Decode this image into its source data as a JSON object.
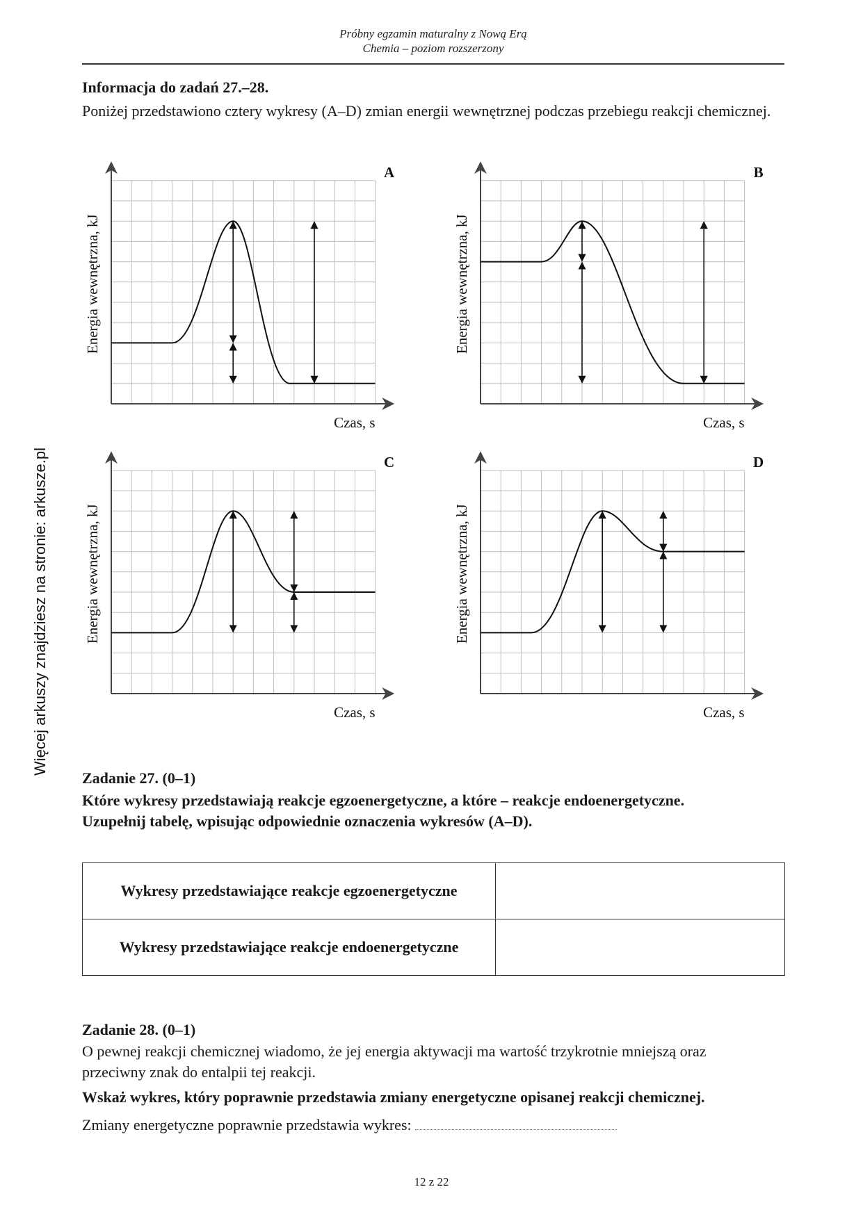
{
  "header": {
    "line1": "Próbny egzamin maturalny z Nową Erą",
    "line2": "Chemia – poziom rozszerzony"
  },
  "side_note": "Więcej arkuszy znajdziesz na stronie: arkusze.pl",
  "info": {
    "title": "Informacja do zadań 27.–28.",
    "text": "Poniżej przedstawiono cztery wykresy (A–D) zmian energii wewnętrznej podczas przebiegu reakcji chemicznej."
  },
  "chart_data": [
    {
      "type": "line",
      "panel": "A",
      "ylabel": "Energia wewnętrzna, kJ",
      "xlabel": "Czas, s",
      "grid": true,
      "grid_size": [
        13,
        11
      ],
      "reactant_energy": 3,
      "peak_energy": 9,
      "product_energy": 1,
      "arrows": [
        {
          "x": 6,
          "y_from": 3,
          "y_to": 9
        },
        {
          "x": 6,
          "y_from": 1,
          "y_to": 3
        },
        {
          "x": 10,
          "y_from": 1,
          "y_to": 9
        }
      ]
    },
    {
      "type": "line",
      "panel": "B",
      "ylabel": "Energia wewnętrzna, kJ",
      "xlabel": "Czas, s",
      "grid": true,
      "grid_size": [
        13,
        11
      ],
      "reactant_energy": 7,
      "peak_energy": 9,
      "product_energy": 1,
      "arrows": [
        {
          "x": 5,
          "y_from": 7,
          "y_to": 9
        },
        {
          "x": 5,
          "y_from": 1,
          "y_to": 7
        },
        {
          "x": 11,
          "y_from": 1,
          "y_to": 9
        }
      ]
    },
    {
      "type": "line",
      "panel": "C",
      "ylabel": "Energia wewnętrzna, kJ",
      "xlabel": "Czas, s",
      "grid": true,
      "grid_size": [
        13,
        11
      ],
      "reactant_energy": 3,
      "peak_energy": 9,
      "product_energy": 5,
      "arrows": [
        {
          "x": 6,
          "y_from": 3,
          "y_to": 9
        },
        {
          "x": 9,
          "y_from": 5,
          "y_to": 9
        },
        {
          "x": 9,
          "y_from": 3,
          "y_to": 5
        }
      ]
    },
    {
      "type": "line",
      "panel": "D",
      "ylabel": "Energia wewnętrzna, kJ",
      "xlabel": "Czas, s",
      "grid": true,
      "grid_size": [
        13,
        11
      ],
      "reactant_energy": 3,
      "peak_energy": 9,
      "product_energy": 7,
      "arrows": [
        {
          "x": 6,
          "y_from": 3,
          "y_to": 9
        },
        {
          "x": 9,
          "y_from": 7,
          "y_to": 9
        },
        {
          "x": 9,
          "y_from": 3,
          "y_to": 7
        }
      ]
    }
  ],
  "task27": {
    "title": "Zadanie 27. (0–1)",
    "instruction_line1": "Które wykresy przedstawiają reakcje egzoenergetyczne, a które – reakcje endoenergetyczne.",
    "instruction_line2": "Uzupełnij tabelę, wpisując odpowiednie oznaczenia wykresów (A–D).",
    "rows": [
      {
        "label": "Wykresy przedstawiające reakcje egzoenergetyczne",
        "answer": ""
      },
      {
        "label": "Wykresy przedstawiające reakcje endoenergetyczne",
        "answer": ""
      }
    ]
  },
  "task28": {
    "title": "Zadanie 28. (0–1)",
    "text": "O pewnej reakcji chemicznej wiadomo, że jej energia aktywacji ma wartość trzykrotnie mniejszą oraz przeciwny znak do entalpii tej reakcji.",
    "instruction": "Wskaż wykres, który poprawnie przedstawia zmiany energetyczne opisanej reakcji chemicznej.",
    "answer_prompt": "Zmiany energetyczne poprawnie przedstawia wykres:"
  },
  "footer": "12 z 22"
}
